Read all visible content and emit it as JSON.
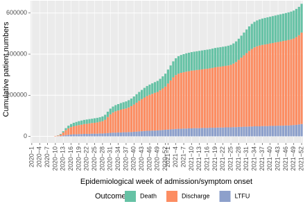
{
  "chart_data": {
    "type": "bar",
    "stacked": true,
    "y_label": "Cumulative patient numbers",
    "x_label": "Epidemiological week of admission/symptom onset",
    "legend_title": "Outcome",
    "legend_position": "bottom",
    "grid": true,
    "ylim": [
      -32000,
      660000
    ],
    "yticks": [
      0,
      200000,
      400000,
      600000
    ],
    "categories": [
      "2020−1",
      null,
      null,
      "2020−4",
      null,
      null,
      "2020−7",
      null,
      null,
      "2020−10",
      null,
      null,
      "2020−13",
      null,
      null,
      "2020−16",
      null,
      null,
      "2020−19",
      null,
      null,
      "2020−22",
      null,
      null,
      "2020−25",
      null,
      null,
      "2020−28",
      null,
      null,
      "2020−31",
      null,
      null,
      "2020−34",
      null,
      null,
      "2020−37",
      null,
      null,
      "2020−40",
      null,
      null,
      "2020−43",
      null,
      null,
      "2020−46",
      null,
      null,
      "2020−49",
      null,
      null,
      "2020−52",
      "2021−1",
      null,
      null,
      "2021−4",
      null,
      null,
      "2021−7",
      null,
      null,
      "2021−10",
      null,
      null,
      "2021−13",
      null,
      null,
      "2021−16",
      null,
      null,
      "2021−19",
      null,
      null,
      "2021−22",
      null,
      null,
      "2021−25",
      null,
      null,
      "2021−28",
      null,
      null,
      "2021−31",
      null,
      null,
      "2021−34",
      null,
      null,
      "2021−37",
      null,
      null,
      "2021−40",
      null,
      null,
      "2021−43",
      null,
      null,
      "2021−46",
      null,
      null,
      "2021−49",
      null,
      null,
      "2021−52"
    ],
    "series": [
      {
        "name": "Death",
        "color": "#66c2a5",
        "values": [
          0,
          0,
          0,
          0,
          0,
          0,
          0,
          0,
          0,
          0,
          1000,
          3000,
          6000,
          10000,
          13000,
          15000,
          17000,
          18000,
          19000,
          20000,
          20000,
          21000,
          21000,
          21000,
          22000,
          22000,
          22000,
          23000,
          24000,
          26000,
          28000,
          29000,
          30000,
          31000,
          32000,
          33000,
          34000,
          35000,
          37000,
          39000,
          41000,
          43000,
          45000,
          47000,
          49000,
          50000,
          51000,
          52000,
          54000,
          56000,
          59000,
          63000,
          68000,
          73000,
          78000,
          82000,
          85000,
          87000,
          88000,
          89000,
          90000,
          90000,
          91000,
          91000,
          92000,
          92000,
          92000,
          93000,
          93000,
          94000,
          94000,
          94000,
          95000,
          95000,
          95000,
          96000,
          97000,
          98000,
          100000,
          103000,
          107000,
          111000,
          115000,
          119000,
          122000,
          124000,
          126000,
          127000,
          128000,
          129000,
          130000,
          130000,
          131000,
          131000,
          132000,
          133000,
          133000,
          134000,
          134000,
          135000,
          136000,
          137000,
          138000,
          140000
        ]
      },
      {
        "name": "Discharge",
        "color": "#fc8d62",
        "values": [
          0,
          0,
          0,
          0,
          0,
          0,
          0,
          0,
          0,
          2000,
          3000,
          7000,
          15000,
          24000,
          31000,
          36000,
          39000,
          42000,
          44000,
          46000,
          48000,
          49000,
          51000,
          52000,
          53000,
          55000,
          57000,
          60000,
          66000,
          78000,
          90000,
          98000,
          104000,
          107000,
          111000,
          113000,
          116000,
          120000,
          126000,
          133000,
          141000,
          149000,
          156000,
          163000,
          169000,
          175000,
          179000,
          184000,
          187000,
          194000,
          202000,
          210000,
          224000,
          238000,
          252000,
          262000,
          268000,
          272000,
          274000,
          277000,
          278000,
          281000,
          281000,
          283000,
          284000,
          285000,
          287000,
          288000,
          289000,
          291000,
          294000,
          295000,
          296000,
          298000,
          299000,
          301000,
          304000,
          309000,
          317000,
          326000,
          337000,
          347000,
          358000,
          368000,
          377000,
          384000,
          389000,
          393000,
          395000,
          397000,
          399000,
          401000,
          403000,
          406000,
          407000,
          409000,
          412000,
          413000,
          416000,
          418000,
          421000,
          427000,
          434000,
          445000
        ]
      },
      {
        "name": "LTFU",
        "color": "#8da0cb",
        "values": [
          0,
          0,
          0,
          0,
          0,
          0,
          0,
          0,
          0,
          0,
          1000,
          2000,
          4000,
          6000,
          8000,
          9000,
          10000,
          10000,
          11000,
          11000,
          12000,
          12000,
          12000,
          13000,
          13000,
          13000,
          14000,
          14000,
          15000,
          16000,
          17000,
          18000,
          18000,
          19000,
          19000,
          20000,
          20000,
          21000,
          21000,
          22000,
          23000,
          24000,
          25000,
          26000,
          27000,
          27000,
          28000,
          28000,
          29000,
          30000,
          31000,
          32000,
          33000,
          34000,
          35000,
          36000,
          37000,
          37000,
          38000,
          38000,
          39000,
          39000,
          40000,
          40000,
          40000,
          41000,
          41000,
          41000,
          42000,
          42000,
          42000,
          43000,
          43000,
          43000,
          44000,
          44000,
          44000,
          45000,
          45000,
          46000,
          46000,
          47000,
          47000,
          48000,
          48000,
          49000,
          49000,
          49000,
          50000,
          50000,
          50000,
          51000,
          51000,
          51000,
          52000,
          52000,
          52000,
          53000,
          53000,
          54000,
          55000,
          56000,
          58000,
          60000
        ]
      }
    ]
  }
}
